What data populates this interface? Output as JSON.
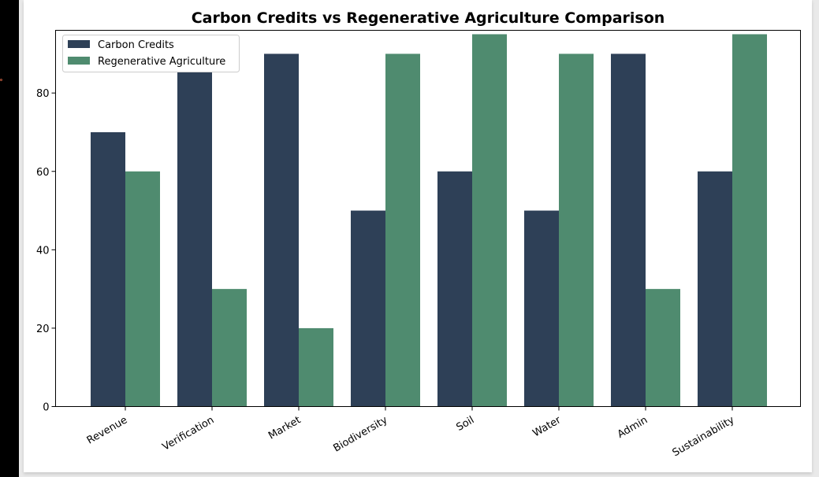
{
  "chart_data": {
    "type": "bar",
    "title": "Carbon Credits vs Regenerative Agriculture Comparison",
    "xlabel": "",
    "ylabel": "",
    "categories": [
      "Revenue",
      "Verification",
      "Market",
      "Biodiversity",
      "Soil",
      "Water",
      "Admin",
      "Sustainability"
    ],
    "series": [
      {
        "name": "Carbon Credits",
        "color": "#2e4057",
        "values": [
          70,
          90,
          90,
          50,
          60,
          50,
          90,
          60
        ]
      },
      {
        "name": "Regenerative Agriculture",
        "color": "#4f8b6f",
        "values": [
          60,
          30,
          20,
          90,
          95,
          90,
          30,
          95
        ]
      }
    ],
    "ylim": [
      0,
      96
    ],
    "yticks": [
      0,
      20,
      40,
      60,
      80
    ],
    "grid": false,
    "legend": "top-left"
  }
}
